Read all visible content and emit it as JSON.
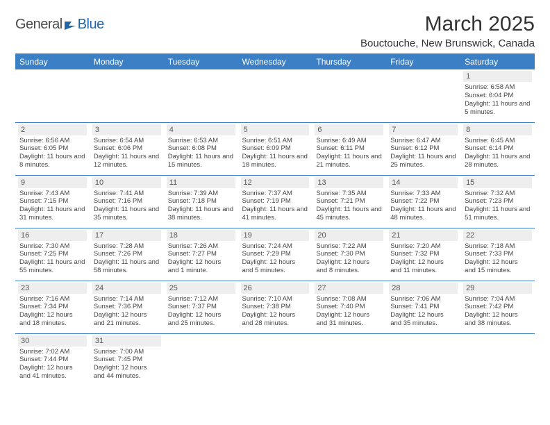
{
  "brand": {
    "part1": "General",
    "part2": "Blue"
  },
  "title": "March 2025",
  "location": "Bouctouche, New Brunswick, Canada",
  "colors": {
    "header_bg": "#3b7fc4",
    "header_text": "#ffffff",
    "daybar_bg": "#eeeeee",
    "text": "#444444",
    "brand_blue": "#2066a8"
  },
  "weekdays": [
    "Sunday",
    "Monday",
    "Tuesday",
    "Wednesday",
    "Thursday",
    "Friday",
    "Saturday"
  ],
  "weeks": [
    [
      null,
      null,
      null,
      null,
      null,
      null,
      {
        "n": "1",
        "sunrise": "6:58 AM",
        "sunset": "6:04 PM",
        "daylight": "11 hours and 5 minutes."
      }
    ],
    [
      {
        "n": "2",
        "sunrise": "6:56 AM",
        "sunset": "6:05 PM",
        "daylight": "11 hours and 8 minutes."
      },
      {
        "n": "3",
        "sunrise": "6:54 AM",
        "sunset": "6:06 PM",
        "daylight": "11 hours and 12 minutes."
      },
      {
        "n": "4",
        "sunrise": "6:53 AM",
        "sunset": "6:08 PM",
        "daylight": "11 hours and 15 minutes."
      },
      {
        "n": "5",
        "sunrise": "6:51 AM",
        "sunset": "6:09 PM",
        "daylight": "11 hours and 18 minutes."
      },
      {
        "n": "6",
        "sunrise": "6:49 AM",
        "sunset": "6:11 PM",
        "daylight": "11 hours and 21 minutes."
      },
      {
        "n": "7",
        "sunrise": "6:47 AM",
        "sunset": "6:12 PM",
        "daylight": "11 hours and 25 minutes."
      },
      {
        "n": "8",
        "sunrise": "6:45 AM",
        "sunset": "6:14 PM",
        "daylight": "11 hours and 28 minutes."
      }
    ],
    [
      {
        "n": "9",
        "sunrise": "7:43 AM",
        "sunset": "7:15 PM",
        "daylight": "11 hours and 31 minutes."
      },
      {
        "n": "10",
        "sunrise": "7:41 AM",
        "sunset": "7:16 PM",
        "daylight": "11 hours and 35 minutes."
      },
      {
        "n": "11",
        "sunrise": "7:39 AM",
        "sunset": "7:18 PM",
        "daylight": "11 hours and 38 minutes."
      },
      {
        "n": "12",
        "sunrise": "7:37 AM",
        "sunset": "7:19 PM",
        "daylight": "11 hours and 41 minutes."
      },
      {
        "n": "13",
        "sunrise": "7:35 AM",
        "sunset": "7:21 PM",
        "daylight": "11 hours and 45 minutes."
      },
      {
        "n": "14",
        "sunrise": "7:33 AM",
        "sunset": "7:22 PM",
        "daylight": "11 hours and 48 minutes."
      },
      {
        "n": "15",
        "sunrise": "7:32 AM",
        "sunset": "7:23 PM",
        "daylight": "11 hours and 51 minutes."
      }
    ],
    [
      {
        "n": "16",
        "sunrise": "7:30 AM",
        "sunset": "7:25 PM",
        "daylight": "11 hours and 55 minutes."
      },
      {
        "n": "17",
        "sunrise": "7:28 AM",
        "sunset": "7:26 PM",
        "daylight": "11 hours and 58 minutes."
      },
      {
        "n": "18",
        "sunrise": "7:26 AM",
        "sunset": "7:27 PM",
        "daylight": "12 hours and 1 minute."
      },
      {
        "n": "19",
        "sunrise": "7:24 AM",
        "sunset": "7:29 PM",
        "daylight": "12 hours and 5 minutes."
      },
      {
        "n": "20",
        "sunrise": "7:22 AM",
        "sunset": "7:30 PM",
        "daylight": "12 hours and 8 minutes."
      },
      {
        "n": "21",
        "sunrise": "7:20 AM",
        "sunset": "7:32 PM",
        "daylight": "12 hours and 11 minutes."
      },
      {
        "n": "22",
        "sunrise": "7:18 AM",
        "sunset": "7:33 PM",
        "daylight": "12 hours and 15 minutes."
      }
    ],
    [
      {
        "n": "23",
        "sunrise": "7:16 AM",
        "sunset": "7:34 PM",
        "daylight": "12 hours and 18 minutes."
      },
      {
        "n": "24",
        "sunrise": "7:14 AM",
        "sunset": "7:36 PM",
        "daylight": "12 hours and 21 minutes."
      },
      {
        "n": "25",
        "sunrise": "7:12 AM",
        "sunset": "7:37 PM",
        "daylight": "12 hours and 25 minutes."
      },
      {
        "n": "26",
        "sunrise": "7:10 AM",
        "sunset": "7:38 PM",
        "daylight": "12 hours and 28 minutes."
      },
      {
        "n": "27",
        "sunrise": "7:08 AM",
        "sunset": "7:40 PM",
        "daylight": "12 hours and 31 minutes."
      },
      {
        "n": "28",
        "sunrise": "7:06 AM",
        "sunset": "7:41 PM",
        "daylight": "12 hours and 35 minutes."
      },
      {
        "n": "29",
        "sunrise": "7:04 AM",
        "sunset": "7:42 PM",
        "daylight": "12 hours and 38 minutes."
      }
    ],
    [
      {
        "n": "30",
        "sunrise": "7:02 AM",
        "sunset": "7:44 PM",
        "daylight": "12 hours and 41 minutes."
      },
      {
        "n": "31",
        "sunrise": "7:00 AM",
        "sunset": "7:45 PM",
        "daylight": "12 hours and 44 minutes."
      },
      null,
      null,
      null,
      null,
      null
    ]
  ],
  "labels": {
    "sunrise": "Sunrise:",
    "sunset": "Sunset:",
    "daylight": "Daylight:"
  }
}
